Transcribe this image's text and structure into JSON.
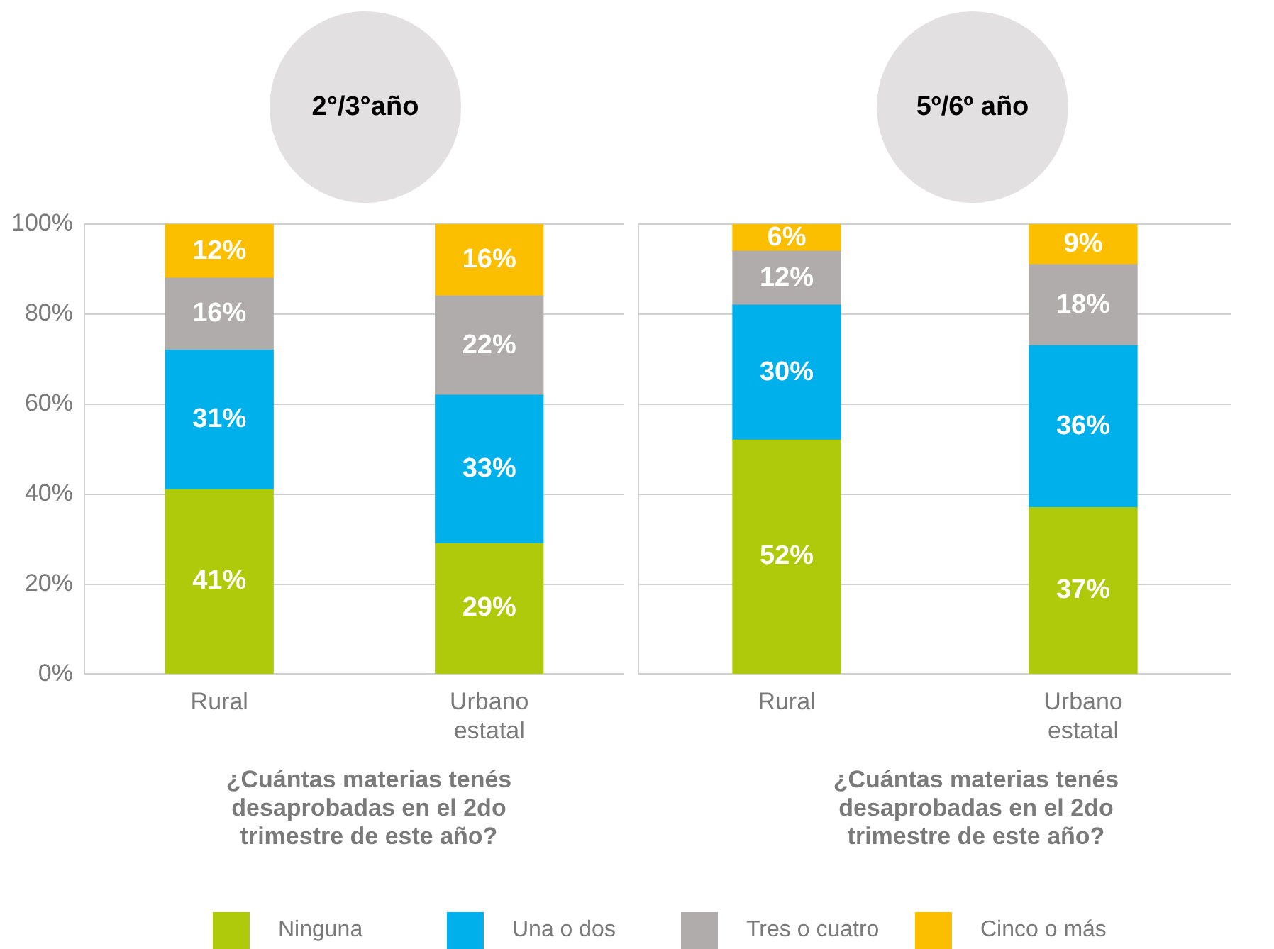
{
  "chart_data": [
    {
      "type": "bar",
      "title": "2°/3°año",
      "xlabel": "¿Cuántas materias tenés desaprobadas en el 2do trimestre de este año?",
      "categories": [
        "Rural",
        "Urbano estatal"
      ],
      "stacked": true,
      "ylim": [
        0,
        100
      ],
      "yticks": [
        {
          "value": 0,
          "label": "0%"
        },
        {
          "value": 20,
          "label": "20%"
        },
        {
          "value": 40,
          "label": "40%"
        },
        {
          "value": 60,
          "label": "60%"
        },
        {
          "value": 80,
          "label": "80%"
        },
        {
          "value": 100,
          "label": "100%"
        }
      ],
      "grid": "y",
      "legend": "bottom",
      "series": [
        {
          "name": "Ninguna",
          "color": "#afca0b",
          "values": [
            41,
            29
          ],
          "value_labels": [
            "41%",
            "29%"
          ]
        },
        {
          "name": "Una o dos",
          "color": "#00b0ea",
          "values": [
            31,
            33
          ],
          "value_labels": [
            "31%",
            "33%"
          ]
        },
        {
          "name": "Tres o cuatro",
          "color": "#b0acab",
          "values": [
            16,
            22
          ],
          "value_labels": [
            "16%",
            "22%"
          ]
        },
        {
          "name": "Cinco o más",
          "color": "#fcbf00",
          "values": [
            12,
            16
          ],
          "value_labels": [
            "12%",
            "16%"
          ]
        }
      ]
    },
    {
      "type": "bar",
      "title": "5º/6º año",
      "xlabel": "¿Cuántas materias tenés desaprobadas en el 2do trimestre de este año?",
      "categories": [
        "Rural",
        "Urbano estatal"
      ],
      "stacked": true,
      "ylim": [
        0,
        100
      ],
      "yticks": [
        {
          "value": 0,
          "label": null
        },
        {
          "value": 20,
          "label": null
        },
        {
          "value": 40,
          "label": null
        },
        {
          "value": 60,
          "label": null
        },
        {
          "value": 80,
          "label": null
        },
        {
          "value": 100,
          "label": null
        }
      ],
      "grid": "y",
      "tick_labels": "x",
      "series": [
        {
          "color": "#afca0b",
          "values": [
            52,
            37
          ],
          "value_labels": [
            "52%",
            "37%"
          ]
        },
        {
          "color": "#00b0ea",
          "values": [
            30,
            36
          ],
          "value_labels": [
            "30%",
            "36%"
          ]
        },
        {
          "color": "#b0acab",
          "values": [
            12,
            18
          ],
          "value_labels": [
            "12%",
            "18%"
          ]
        },
        {
          "color": "#fcbf00",
          "values": [
            6,
            9
          ],
          "value_labels": [
            "6%",
            "9%"
          ]
        }
      ]
    }
  ]
}
